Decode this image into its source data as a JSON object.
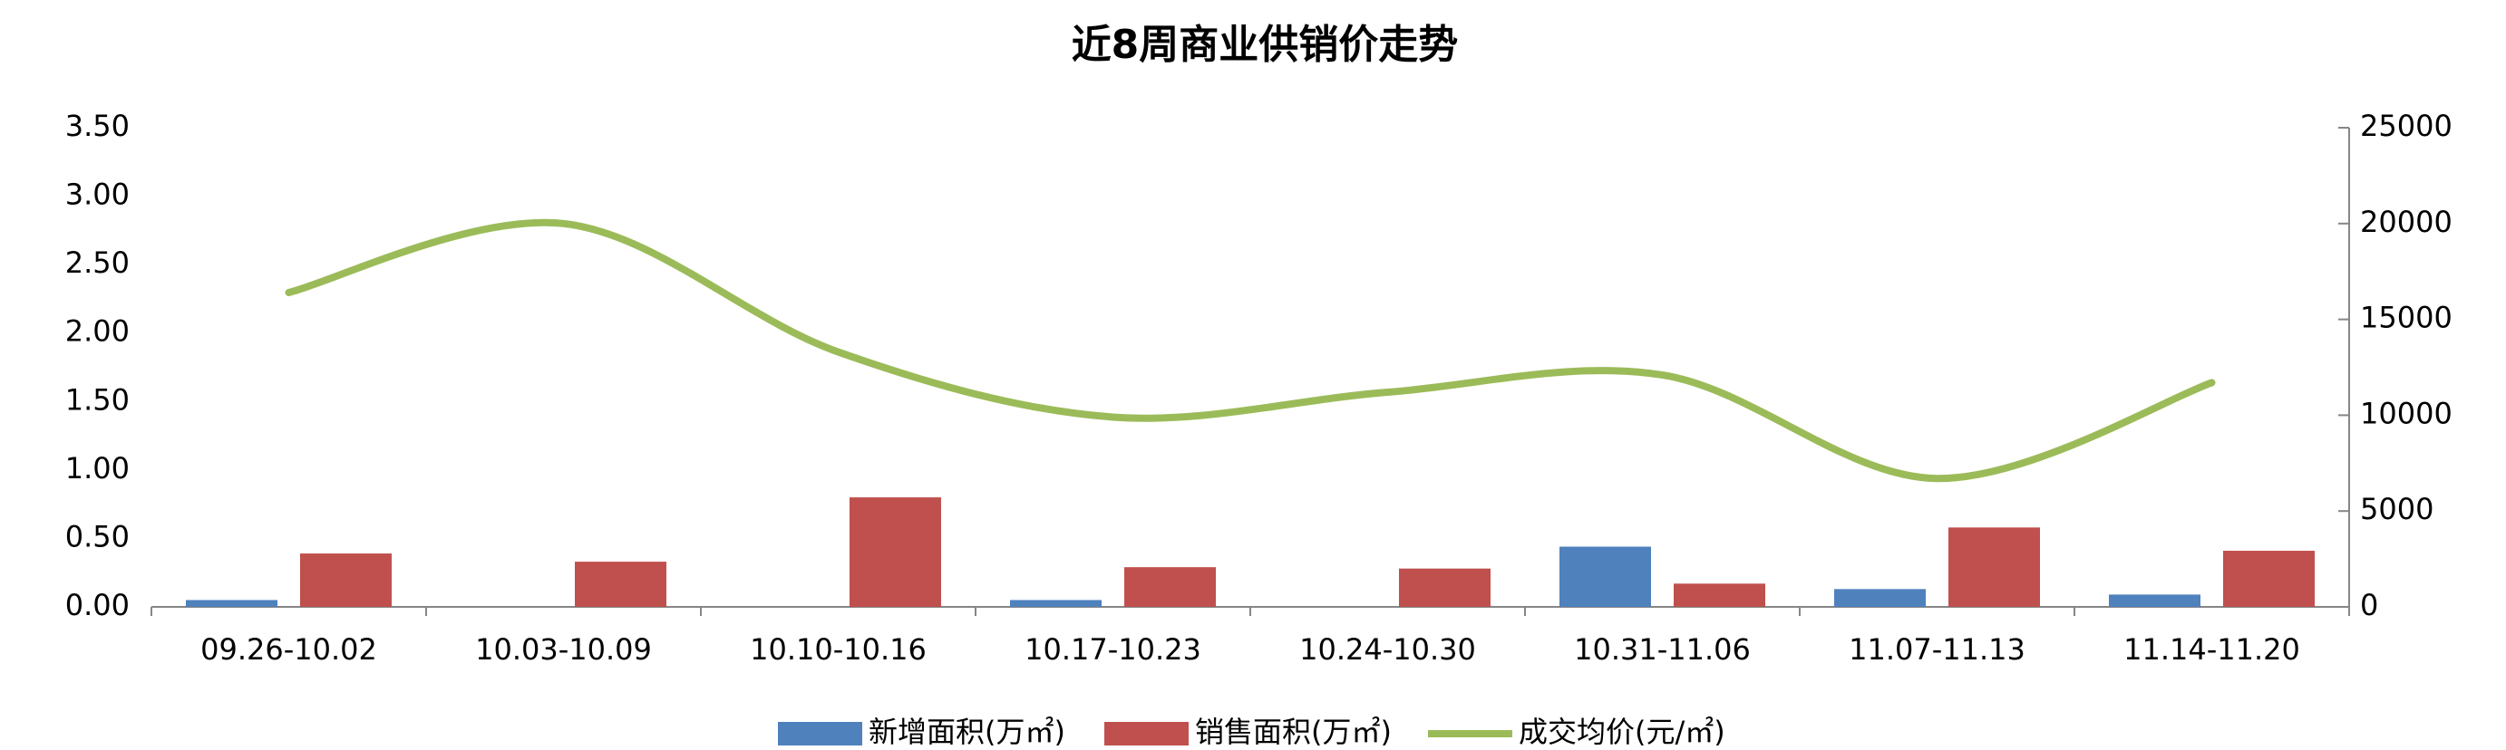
{
  "chart_data": {
    "type": "bar",
    "title": "近8周商业供销价走势",
    "categories": [
      "09.26-10.02",
      "10.03-10.09",
      "10.10-10.16",
      "10.17-10.23",
      "10.24-10.30",
      "10.31-11.06",
      "11.07-11.13",
      "11.14-11.20"
    ],
    "series": [
      {
        "name": "新增面积(万㎡)",
        "color": "#4f81bd",
        "values": [
          0.05,
          0,
          0,
          0.05,
          0,
          0.44,
          0.13,
          0.09
        ]
      },
      {
        "name": "销售面积(万㎡)",
        "color": "#c0504d",
        "values": [
          0.39,
          0.33,
          0.8,
          0.29,
          0.28,
          0.17,
          0.58,
          0.41
        ]
      },
      {
        "name": "成交均价(元/㎡)",
        "color": "#9bbb59",
        "type": "line",
        "axis": "y2",
        "values": [
          16400,
          20000,
          13300,
          9900,
          11200,
          12100,
          6700,
          11700
        ]
      }
    ],
    "ylim": [
      0,
      3.5
    ],
    "yticks": [
      {
        "value": 0,
        "label": "0.00"
      },
      {
        "value": 0.5,
        "label": "0.50"
      },
      {
        "value": 1,
        "label": "1.00"
      },
      {
        "value": 1.5,
        "label": "1.50"
      },
      {
        "value": 2,
        "label": "2.00"
      },
      {
        "value": 2.5,
        "label": "2.50"
      },
      {
        "value": 3,
        "label": "3.00"
      },
      {
        "value": 3.5,
        "label": "3.50"
      }
    ],
    "y2lim": [
      0,
      25000
    ],
    "y2ticks": [
      0,
      5000,
      10000,
      15000,
      20000,
      25000
    ],
    "legend": "bottom"
  }
}
